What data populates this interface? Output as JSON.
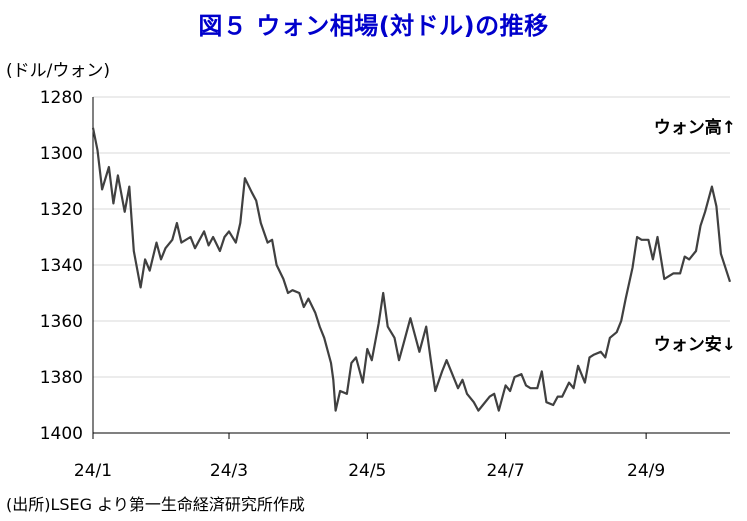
{
  "title": "図５ ウォン相場(対ドル)の推移",
  "source_note": "(出所)LSEG より第一生命経済研究所作成",
  "colors": {
    "title": "#0000CC",
    "series": "#404040",
    "grid": "#D9D9D9",
    "axis": "#000000"
  },
  "chart_data": {
    "type": "line",
    "ylabel": "(ドル/ウォン)",
    "y_inverted": true,
    "ylim": [
      1280,
      1400
    ],
    "yticks": [
      1280,
      1300,
      1320,
      1340,
      1360,
      1380,
      1400
    ],
    "xlim": [
      "2024-01-01",
      "2024-10-08"
    ],
    "xticks": [
      {
        "date": "2024-01-01",
        "label": "24/1"
      },
      {
        "date": "2024-03-01",
        "label": "24/3"
      },
      {
        "date": "2024-05-01",
        "label": "24/5"
      },
      {
        "date": "2024-07-01",
        "label": "24/7"
      },
      {
        "date": "2024-09-01",
        "label": "24/9"
      }
    ],
    "grid": "horizontal",
    "annotations": [
      {
        "text": "ウォン高↑",
        "position": "upper-right"
      },
      {
        "text": "ウォン安↓",
        "position": "lower-right"
      }
    ],
    "series": [
      {
        "dates": [
          "2024-01-01",
          "2024-01-03",
          "2024-01-05",
          "2024-01-08",
          "2024-01-10",
          "2024-01-12",
          "2024-01-15",
          "2024-01-17",
          "2024-01-19",
          "2024-01-22",
          "2024-01-24",
          "2024-01-26",
          "2024-01-29",
          "2024-01-31",
          "2024-02-02",
          "2024-02-05",
          "2024-02-07",
          "2024-02-09",
          "2024-02-13",
          "2024-02-15",
          "2024-02-19",
          "2024-02-21",
          "2024-02-23",
          "2024-02-26",
          "2024-02-28",
          "2024-03-01",
          "2024-03-04",
          "2024-03-06",
          "2024-03-08",
          "2024-03-11",
          "2024-03-13",
          "2024-03-15",
          "2024-03-18",
          "2024-03-20",
          "2024-03-22",
          "2024-03-25",
          "2024-03-27",
          "2024-03-29",
          "2024-04-01",
          "2024-04-03",
          "2024-04-05",
          "2024-04-08",
          "2024-04-10",
          "2024-04-12",
          "2024-04-15",
          "2024-04-16",
          "2024-04-17",
          "2024-04-19",
          "2024-04-22",
          "2024-04-24",
          "2024-04-26",
          "2024-04-29",
          "2024-05-01",
          "2024-05-03",
          "2024-05-06",
          "2024-05-08",
          "2024-05-10",
          "2024-05-13",
          "2024-05-15",
          "2024-05-17",
          "2024-05-20",
          "2024-05-22",
          "2024-05-24",
          "2024-05-27",
          "2024-05-29",
          "2024-05-31",
          "2024-06-03",
          "2024-06-05",
          "2024-06-07",
          "2024-06-10",
          "2024-06-12",
          "2024-06-14",
          "2024-06-17",
          "2024-06-19",
          "2024-06-21",
          "2024-06-24",
          "2024-06-26",
          "2024-06-28",
          "2024-07-01",
          "2024-07-03",
          "2024-07-05",
          "2024-07-08",
          "2024-07-10",
          "2024-07-12",
          "2024-07-15",
          "2024-07-17",
          "2024-07-19",
          "2024-07-22",
          "2024-07-24",
          "2024-07-26",
          "2024-07-29",
          "2024-07-31",
          "2024-08-02",
          "2024-08-05",
          "2024-08-07",
          "2024-08-09",
          "2024-08-12",
          "2024-08-14",
          "2024-08-16",
          "2024-08-19",
          "2024-08-21",
          "2024-08-23",
          "2024-08-26",
          "2024-08-28",
          "2024-08-30",
          "2024-09-02",
          "2024-09-04",
          "2024-09-06",
          "2024-09-09",
          "2024-09-11",
          "2024-09-13",
          "2024-09-16",
          "2024-09-18",
          "2024-09-20",
          "2024-09-23",
          "2024-09-25",
          "2024-09-27",
          "2024-09-30",
          "2024-10-02",
          "2024-10-04",
          "2024-10-08"
        ],
        "values": [
          1291,
          1299,
          1313,
          1305,
          1318,
          1308,
          1321,
          1312,
          1335,
          1348,
          1338,
          1342,
          1332,
          1338,
          1334,
          1331,
          1325,
          1332,
          1330,
          1334,
          1328,
          1333,
          1330,
          1335,
          1330,
          1328,
          1332,
          1325,
          1309,
          1314,
          1317,
          1325,
          1332,
          1331,
          1340,
          1345,
          1350,
          1349,
          1350,
          1355,
          1352,
          1357,
          1362,
          1366,
          1375,
          1381,
          1392,
          1385,
          1386,
          1375,
          1373,
          1382,
          1370,
          1374,
          1361,
          1350,
          1362,
          1366,
          1374,
          1368,
          1359,
          1365,
          1371,
          1362,
          1374,
          1385,
          1378,
          1374,
          1378,
          1384,
          1381,
          1386,
          1389,
          1392,
          1390,
          1387,
          1386,
          1392,
          1383,
          1385,
          1380,
          1379,
          1383,
          1384,
          1384,
          1378,
          1389,
          1390,
          1387,
          1387,
          1382,
          1384,
          1376,
          1382,
          1373,
          1372,
          1371,
          1373,
          1366,
          1364,
          1360,
          1352,
          1341,
          1330,
          1331,
          1331,
          1338,
          1330,
          1345,
          1344,
          1343,
          1343,
          1337,
          1338,
          1335,
          1326,
          1321,
          1312,
          1319,
          1336,
          1346
        ]
      }
    ]
  }
}
